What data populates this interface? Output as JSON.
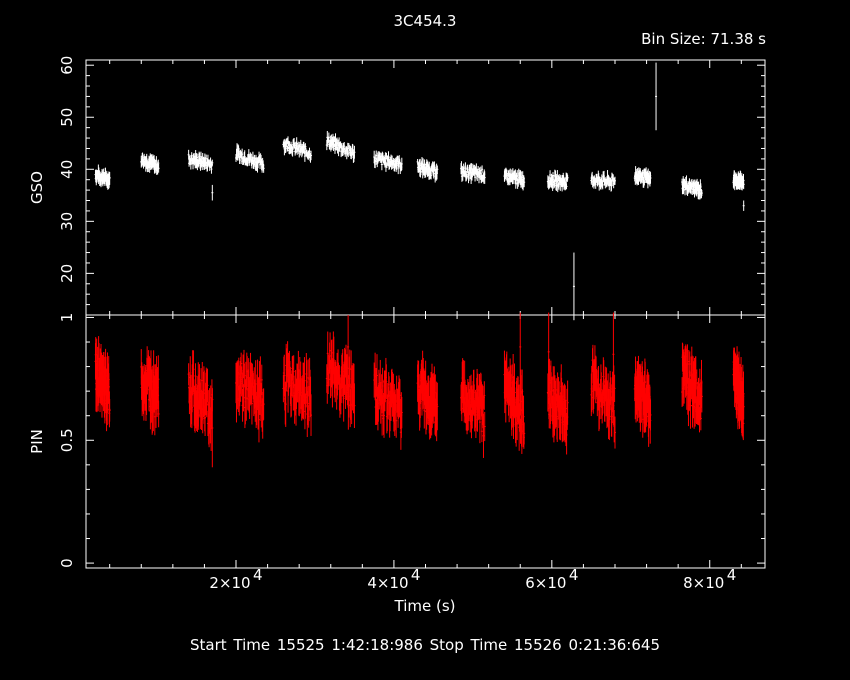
{
  "header": {
    "title": "3C454.3",
    "bin_size": "Bin Size: 71.38 s"
  },
  "footer": {
    "time_range": "Start Time 15525  1:42:18:986    Stop Time 15526  0:21:36:645"
  },
  "colors": {
    "background": "#000000",
    "gso": "#ffffff",
    "pin": "#ff0000",
    "axes": "#ffffff"
  },
  "chart_data": [
    {
      "type": "scatter",
      "panel": "top",
      "xlabel": "",
      "ylabel": "GSO",
      "xlim": [
        1000,
        87000
      ],
      "ylim": [
        12,
        61
      ],
      "yticks": [
        20,
        30,
        40,
        50,
        60
      ],
      "ytick_labels": [
        "20",
        "30",
        "40",
        "50",
        "60"
      ],
      "segments": [
        {
          "x": [
            2200,
            4000
          ],
          "y": [
            39,
            38
          ]
        },
        {
          "x": [
            8000,
            10200
          ],
          "y": [
            42,
            40.5
          ]
        },
        {
          "x": [
            14000,
            17000
          ],
          "y": [
            42,
            41
          ]
        },
        {
          "x": [
            20000,
            23500
          ],
          "y": [
            43,
            41
          ]
        },
        {
          "x": [
            26000,
            29500
          ],
          "y": [
            45,
            43
          ]
        },
        {
          "x": [
            31500,
            35000
          ],
          "y": [
            45.5,
            43
          ]
        },
        {
          "x": [
            37500,
            41000
          ],
          "y": [
            42,
            41
          ]
        },
        {
          "x": [
            43000,
            45500
          ],
          "y": [
            40.5,
            39.5
          ]
        },
        {
          "x": [
            48500,
            51500
          ],
          "y": [
            39.5,
            39
          ]
        },
        {
          "x": [
            54000,
            56500
          ],
          "y": [
            38.5,
            38
          ]
        },
        {
          "x": [
            59500,
            62000
          ],
          "y": [
            38,
            37.5
          ]
        },
        {
          "x": [
            65000,
            68000
          ],
          "y": [
            38,
            37.5
          ]
        },
        {
          "x": [
            70500,
            72500
          ],
          "y": [
            39,
            38
          ]
        },
        {
          "x": [
            76500,
            79000
          ],
          "y": [
            37,
            36
          ]
        },
        {
          "x": [
            83000,
            84300
          ],
          "y": [
            38,
            37.5
          ]
        }
      ],
      "outliers": [
        {
          "x": 17000,
          "y": 35.5,
          "err": 1.5
        },
        {
          "x": 84300,
          "y": 33,
          "err": 1
        },
        {
          "x": 62800,
          "y": 17.5,
          "err": 6.5
        },
        {
          "x": 73200,
          "y": 54,
          "err": 6.5
        }
      ]
    },
    {
      "type": "scatter",
      "panel": "bottom",
      "xlabel": "Time (s)",
      "ylabel": "PIN",
      "xlim": [
        1000,
        87000
      ],
      "ylim": [
        -0.02,
        1.01
      ],
      "xticks": [
        20000,
        40000,
        60000,
        80000
      ],
      "xtick_labels": [
        "2×10",
        "4×10",
        "6×10",
        "8×10"
      ],
      "xtick_exponent": "4",
      "yticks": [
        0,
        0.5,
        1
      ],
      "ytick_labels": [
        "0",
        "0.5",
        "1"
      ],
      "segments": [
        {
          "x": [
            2200,
            4000
          ],
          "y": [
            0.78,
            0.68
          ]
        },
        {
          "x": [
            8000,
            10200
          ],
          "y": [
            0.75,
            0.66
          ]
        },
        {
          "x": [
            14000,
            17000
          ],
          "y": [
            0.72,
            0.62
          ]
        },
        {
          "x": [
            20000,
            23500
          ],
          "y": [
            0.75,
            0.65
          ]
        },
        {
          "x": [
            26000,
            29500
          ],
          "y": [
            0.74,
            0.68
          ]
        },
        {
          "x": [
            31500,
            35000
          ],
          "y": [
            0.8,
            0.7
          ]
        },
        {
          "x": [
            37500,
            41000
          ],
          "y": [
            0.7,
            0.62
          ]
        },
        {
          "x": [
            43000,
            45500
          ],
          "y": [
            0.72,
            0.62
          ]
        },
        {
          "x": [
            48500,
            51500
          ],
          "y": [
            0.7,
            0.6
          ]
        },
        {
          "x": [
            54000,
            56500
          ],
          "y": [
            0.72,
            0.6
          ]
        },
        {
          "x": [
            59500,
            62000
          ],
          "y": [
            0.7,
            0.6
          ]
        },
        {
          "x": [
            65000,
            68000
          ],
          "y": [
            0.75,
            0.62
          ]
        },
        {
          "x": [
            70500,
            72500
          ],
          "y": [
            0.72,
            0.62
          ]
        },
        {
          "x": [
            76500,
            79000
          ],
          "y": [
            0.78,
            0.65
          ]
        },
        {
          "x": [
            83000,
            84300
          ],
          "y": [
            0.75,
            0.65
          ]
        }
      ],
      "outliers": [
        {
          "x": 17000,
          "y": 0.55,
          "err": 0.16
        },
        {
          "x": 59600,
          "y": 0.86,
          "err": 0.16
        },
        {
          "x": 67800,
          "y": 0.85,
          "err": 0.17
        },
        {
          "x": 56000,
          "y": 0.88,
          "err": 0.14
        },
        {
          "x": 34200,
          "y": 0.88,
          "err": 0.13
        }
      ]
    }
  ]
}
